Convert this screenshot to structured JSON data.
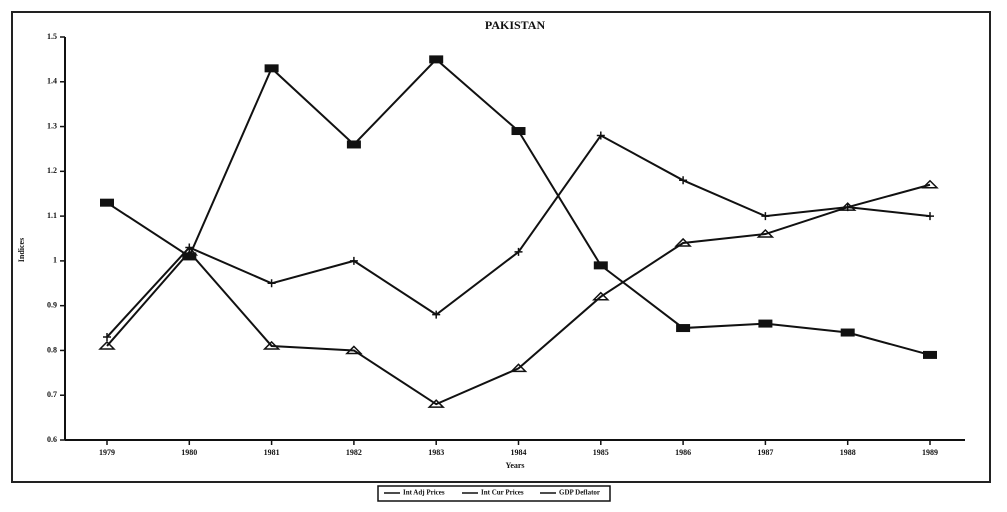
{
  "chart_data": {
    "type": "line",
    "title": "PAKISTAN",
    "x_label": "Years",
    "y_label": "Indices",
    "categories": [
      "1979",
      "1980",
      "1981",
      "1982",
      "1983",
      "1984",
      "1985",
      "1986",
      "1987",
      "1988",
      "1989"
    ],
    "series": [
      {
        "name": "Int Adj Prices",
        "color": "#111111",
        "marker": "plus",
        "values": [
          0.83,
          1.03,
          0.95,
          1.0,
          0.88,
          1.02,
          1.28,
          1.18,
          1.1,
          1.12,
          1.1
        ]
      },
      {
        "name": "Int Cur Prices",
        "color": "#111111",
        "marker": "triangle",
        "values": [
          0.81,
          1.02,
          0.81,
          0.8,
          0.68,
          0.76,
          0.92,
          1.04,
          1.06,
          1.12,
          1.17
        ]
      },
      {
        "name": "GDP Deflator",
        "color": "#111111",
        "marker": "square",
        "values": [
          1.13,
          1.01,
          1.43,
          1.26,
          1.45,
          1.29,
          0.99,
          0.85,
          0.86,
          0.84,
          0.79
        ]
      }
    ],
    "ylim": [
      0.6,
      1.5
    ],
    "yticks": [
      0.6,
      0.7,
      0.8,
      0.9,
      1,
      1.1,
      1.2,
      1.3,
      1.4,
      1.5
    ]
  }
}
